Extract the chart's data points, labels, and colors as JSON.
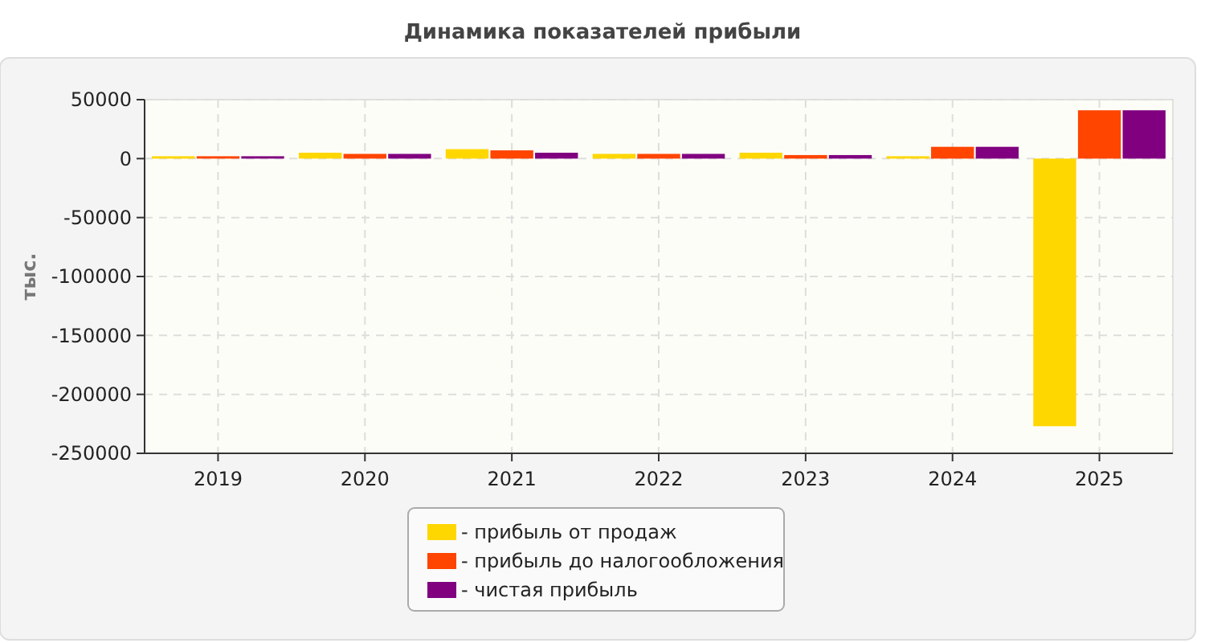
{
  "chart_data": {
    "type": "bar",
    "title": "Динамика показателей прибыли",
    "ylabel": "тыс.",
    "categories": [
      "2019",
      "2020",
      "2021",
      "2022",
      "2023",
      "2024",
      "2025"
    ],
    "series": [
      {
        "name": "- прибыль от продаж",
        "color": "#ffd700",
        "values": [
          2000,
          5000,
          8000,
          4000,
          5000,
          2000,
          -227000
        ]
      },
      {
        "name": "- прибыль до налогообложения",
        "color": "#ff4500",
        "values": [
          2000,
          4000,
          7000,
          4000,
          3000,
          10000,
          41000
        ]
      },
      {
        "name": "- чистая прибыль",
        "color": "#800080",
        "values": [
          2000,
          4000,
          5000,
          4000,
          3000,
          10000,
          41000
        ]
      }
    ],
    "ylim": [
      -250000,
      50000
    ],
    "yticks": [
      -250000,
      -200000,
      -150000,
      -100000,
      -50000,
      0,
      50000
    ],
    "grid": true,
    "legend": "bottom"
  }
}
